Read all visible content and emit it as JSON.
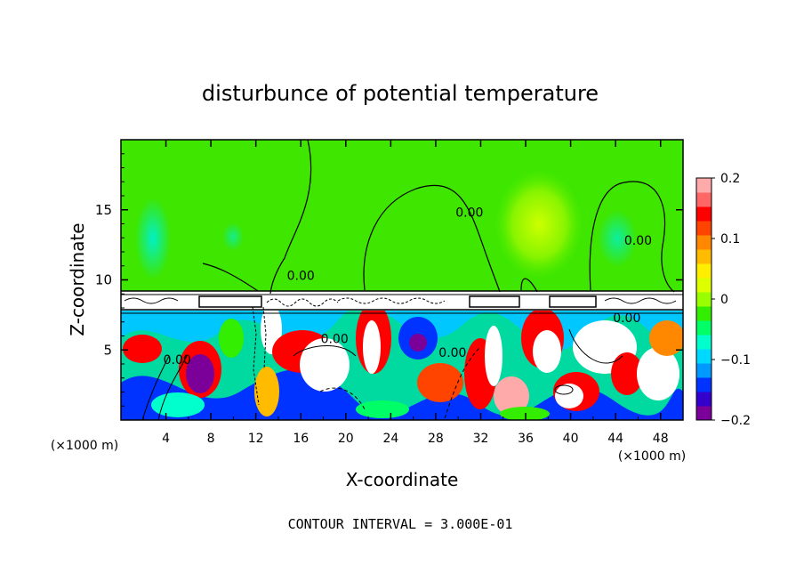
{
  "chart_data": {
    "type": "heatmap",
    "title": "disturbunce of potential temperature",
    "xlabel": "X-coordinate",
    "ylabel": "Z-coordinate",
    "x_unit": "(×1000 m)",
    "y_unit": "(×1000 m)",
    "xlim": [
      0,
      50
    ],
    "ylim": [
      0,
      20
    ],
    "x_ticks": [
      4,
      8,
      12,
      16,
      20,
      24,
      28,
      32,
      36,
      40,
      44,
      48
    ],
    "y_ticks": [
      5,
      10,
      15
    ],
    "colorbar": {
      "min": -0.2,
      "max": 0.2,
      "tick_values": [
        0.2,
        0.1,
        0,
        -0.1,
        -0.2
      ],
      "tick_labels": [
        "0.2",
        "0.1",
        "0",
        "−0.1",
        "−0.2"
      ],
      "colors": [
        "#7a0099",
        "#3300cc",
        "#0033ff",
        "#0099ff",
        "#00d9ff",
        "#00ffcc",
        "#00ff66",
        "#33ee00",
        "#99ff00",
        "#ddff00",
        "#ffee00",
        "#ffbb00",
        "#ff8800",
        "#ff4400",
        "#ff0000",
        "#ff6666",
        "#ffaaaa"
      ]
    },
    "contour_labels": [
      {
        "text": "0.00",
        "x": 16.0,
        "z": 10.0
      },
      {
        "text": "0.00",
        "x": 31.0,
        "z": 14.5
      },
      {
        "text": "0.00",
        "x": 46.0,
        "z": 12.5
      },
      {
        "text": "0.00",
        "x": 19.0,
        "z": 5.5
      },
      {
        "text": "0.00",
        "x": 29.5,
        "z": 4.5
      },
      {
        "text": "0.00",
        "x": 5.0,
        "z": 4.0
      },
      {
        "text": "0.00",
        "x": 45.0,
        "z": 7.0
      }
    ],
    "annotation": "CONTOUR INTERVAL = 3.000E-01"
  }
}
